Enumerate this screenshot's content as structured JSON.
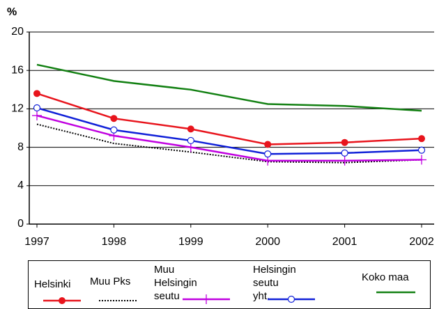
{
  "chart_data": {
    "type": "line",
    "y_label": "%",
    "x": [
      "1997",
      "1998",
      "1999",
      "2000",
      "2001",
      "2002"
    ],
    "ylim": [
      0,
      20
    ],
    "yticks": [
      0,
      4,
      8,
      12,
      16,
      20
    ],
    "grid": true,
    "legend": "bottom",
    "series": [
      {
        "name": "Helsinki",
        "color": "#e8141c",
        "marker": "filled-circle",
        "dash": "solid",
        "values": [
          13.6,
          11.0,
          9.9,
          8.3,
          8.5,
          8.9
        ]
      },
      {
        "name": "Muu Pks",
        "color": "#000000",
        "marker": "none",
        "dash": "dotted",
        "values": [
          10.4,
          8.4,
          7.5,
          6.5,
          6.4,
          6.7
        ]
      },
      {
        "name": "Muu Helsingin seutu",
        "color": "#c000e0",
        "marker": "plus",
        "dash": "solid",
        "values": [
          11.3,
          9.2,
          8.0,
          6.6,
          6.6,
          6.7
        ]
      },
      {
        "name": "Helsingin seutu yht.",
        "color": "#1020d8",
        "marker": "open-circle",
        "dash": "solid",
        "values": [
          12.1,
          9.8,
          8.7,
          7.3,
          7.4,
          7.7
        ]
      },
      {
        "name": "Koko maa",
        "color": "#128012",
        "marker": "none",
        "dash": "solid",
        "values": [
          16.6,
          14.9,
          14.0,
          12.5,
          12.3,
          11.8
        ]
      }
    ]
  }
}
